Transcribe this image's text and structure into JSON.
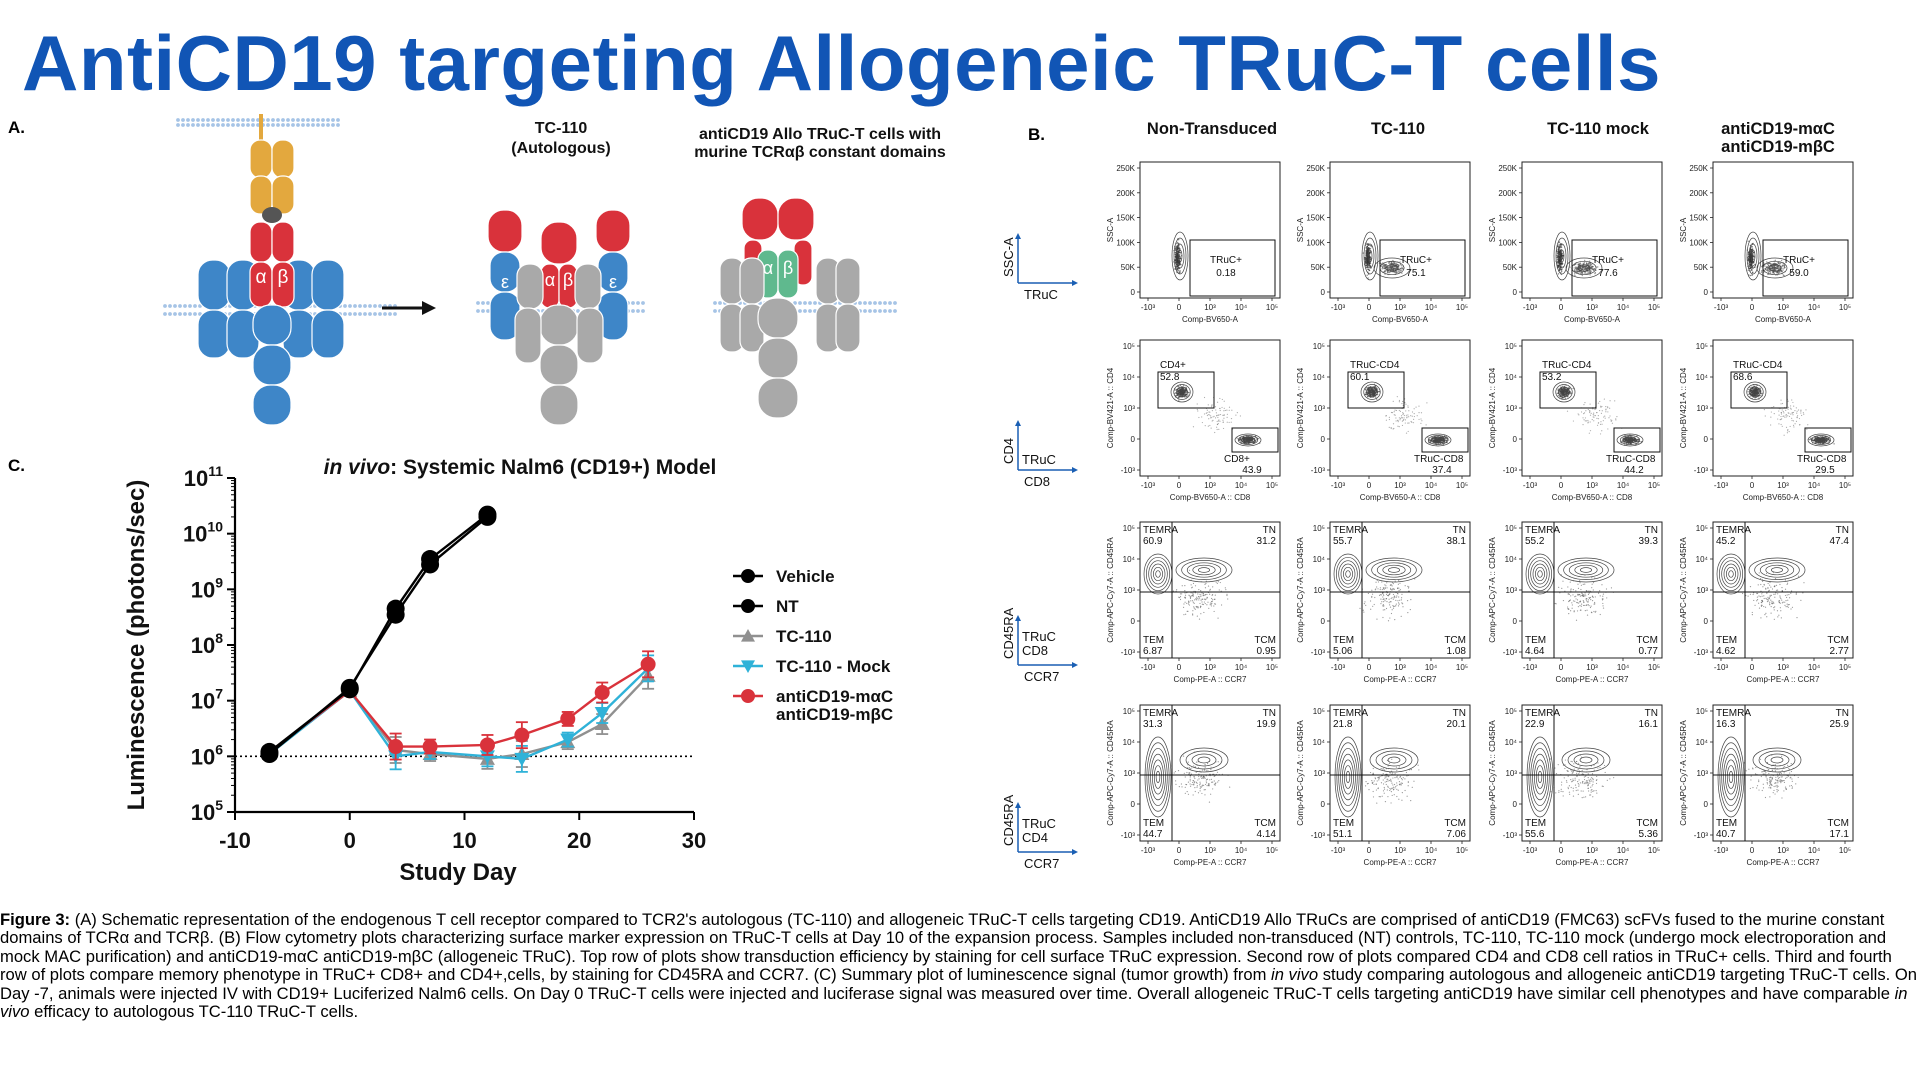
{
  "title": "AntiCD19 targeting Allogeneic TRuC-T cells",
  "panel_a": {
    "letter": "A.",
    "col2_title": [
      "TC-110",
      "(Autologous)"
    ],
    "col3_title": [
      "antiCD19 Allo TRuC-T cells with",
      "murine TCRαβ constant domains"
    ],
    "alpha": "α",
    "beta": "β",
    "epsilon": "ε",
    "colors": {
      "scfv": "#e3a83e",
      "tcr": "#d9323b",
      "cd3": "#3e86c8",
      "grey": "#a9a9a9",
      "murine": "#5fb98e"
    }
  },
  "panel_b": {
    "letter": "B.",
    "columns": [
      "Non-Transduced",
      "TC-110",
      "TC-110 mock",
      "antiCD19-mαC\nantiCD19-mβC"
    ],
    "row_axes": [
      {
        "y_axis": "SSC-A",
        "x_axis": "Comp-BV650-A",
        "legend": [
          "SSC-A",
          "TRuC"
        ]
      },
      {
        "y_axis": "Comp-BV421-A :: CD4",
        "x_axis": "Comp-BV650-A :: CD8",
        "legend": [
          "CD4",
          "TRuC",
          "CD8"
        ]
      },
      {
        "y_axis": "Comp-APC-Cy7-A :: CD45RA",
        "x_axis": "Comp-PE-A :: CCR7",
        "legend": [
          "CD45RA",
          "TRuC",
          "CD8",
          "CCR7"
        ]
      },
      {
        "y_axis": "Comp-APC-Cy7-A :: CD45RA",
        "x_axis": "Comp-PE-A :: CCR7",
        "legend": [
          "CD45RA",
          "TRuC",
          "CD4",
          "CCR7"
        ]
      }
    ],
    "row1_yticks": [
      "250K",
      "200K",
      "150K",
      "100K",
      "50K",
      "0"
    ],
    "log_xticks": [
      "-10³",
      "0",
      "10³",
      "10⁴",
      "10⁵"
    ],
    "log_yticks": [
      "10⁵",
      "10⁴",
      "10³",
      "0",
      "-10³"
    ],
    "row1": [
      {
        "gate": "TRuC+",
        "value": "0.18"
      },
      {
        "gate": "TRuC+",
        "value": "75.1"
      },
      {
        "gate": "TRuC+",
        "value": "77.6"
      },
      {
        "gate": "TRuC+",
        "value": "59.0"
      }
    ],
    "row2": [
      {
        "upper_gate": "CD4+",
        "upper": "52.8",
        "lower_gate": "CD8+",
        "lower": "43.9"
      },
      {
        "upper_gate": "TRuC-CD4",
        "upper": "60.1",
        "lower_gate": "TRuC-CD8",
        "lower": "37.4"
      },
      {
        "upper_gate": "TRuC-CD4",
        "upper": "53.2",
        "lower_gate": "TRuC-CD8",
        "lower": "44.2"
      },
      {
        "upper_gate": "TRuC-CD4",
        "upper": "68.6",
        "lower_gate": "TRuC-CD8",
        "lower": "29.5"
      }
    ],
    "quad_labels": {
      "tl": "TEMRA",
      "tr": "TN",
      "bl": "TEM",
      "br": "TCM"
    },
    "row3": [
      {
        "temra": "60.9",
        "tn": "31.2",
        "tem": "6.87",
        "tcm": "0.95"
      },
      {
        "temra": "55.7",
        "tn": "38.1",
        "tem": "5.06",
        "tcm": "1.08"
      },
      {
        "temra": "55.2",
        "tn": "39.3",
        "tem": "4.64",
        "tcm": "0.77"
      },
      {
        "temra": "45.2",
        "tn": "47.4",
        "tem": "4.62",
        "tcm": "2.77"
      }
    ],
    "row4": [
      {
        "temra": "31.3",
        "tn": "19.9",
        "tem": "44.7",
        "tcm": "4.14"
      },
      {
        "temra": "21.8",
        "tn": "20.1",
        "tem": "51.1",
        "tcm": "7.06"
      },
      {
        "temra": "22.9",
        "tn": "16.1",
        "tem": "55.6",
        "tcm": "5.36"
      },
      {
        "temra": "16.3",
        "tn": "25.9",
        "tem": "40.7",
        "tcm": "17.1"
      }
    ]
  },
  "panel_c": {
    "letter": "C.",
    "chart_data": {
      "type": "line",
      "title_italic": "in vivo",
      "title_rest": ": Systemic Nalm6 (CD19+) Model",
      "xlabel": "Study Day",
      "ylabel": "Luminescence (photons/sec)",
      "xlim": [
        -10,
        30
      ],
      "xticks": [
        -10,
        0,
        10,
        20,
        30
      ],
      "ylog": true,
      "ylim": [
        100000,
        100000000000
      ],
      "yticks_exp": [
        5,
        6,
        7,
        8,
        9,
        10,
        11
      ],
      "reference_line": 1000000,
      "series": [
        {
          "name": "Vehicle",
          "color": "#000000",
          "marker": "circle",
          "x": [
            -7,
            0,
            4,
            7,
            12
          ],
          "y": [
            1200000,
            16000000,
            450000000,
            3500000000,
            22000000000
          ]
        },
        {
          "name": "NT",
          "color": "#000000",
          "marker": "circle",
          "x": [
            -7,
            0,
            4,
            7,
            12
          ],
          "y": [
            1100000,
            17000000,
            350000000,
            2800000000,
            20000000000
          ]
        },
        {
          "name": "TC-110",
          "color": "#909090",
          "marker": "triangle-up",
          "x": [
            -7,
            0,
            4,
            7,
            12,
            15,
            19,
            22,
            26
          ],
          "y": [
            1100000,
            15000000,
            1300000,
            1100000,
            900000,
            1100000,
            1800000,
            3800000,
            28000000
          ]
        },
        {
          "name": "TC-110 - Mock",
          "color": "#2fb2d8",
          "marker": "triangle-down",
          "x": [
            -7,
            0,
            4,
            7,
            12,
            15,
            19,
            22,
            26
          ],
          "y": [
            1100000,
            15000000,
            1000000,
            1200000,
            1000000,
            900000,
            2000000,
            6000000,
            38000000
          ]
        },
        {
          "name": "antiCD19-mαC\nantiCD19-mβC",
          "color": "#d9323b",
          "marker": "circle",
          "x": [
            -7,
            0,
            4,
            7,
            12,
            15,
            19,
            22,
            26
          ],
          "y": [
            1200000,
            15000000,
            1500000,
            1500000,
            1600000,
            2400000,
            4700000,
            14000000,
            45000000
          ]
        }
      ]
    }
  },
  "caption": {
    "label": "Figure 3:",
    "text": " (A) Schematic representation of the endogenous T cell receptor compared to TCR2's autologous (TC-110) and allogeneic TRuC-T cells targeting CD19. AntiCD19 Allo TRuCs are comprised of antiCD19 (FMC63) scFVs fused to the murine constant domains of TCRα and TCRβ. (B) Flow cytometry plots characterizing surface marker expression on TRuC-T cells at Day 10 of the expansion process. Samples included non-transduced (NT) controls, TC-110, TC-110 mock (undergo mock electroporation and mock MAC purification) and antiCD19-mαC antiCD19-mβC (allogeneic TRuC). Top row of plots show transduction efficiency by staining for cell surface TRuC expression. Second row of plots compared CD4 and CD8 cell ratios in TRuC+ cells. Third and fourth row of plots compare memory phenotype in TRuC+ CD8+ and CD4+,cells, by staining for CD45RA and CCR7. (C) Summary plot of luminescence signal (tumor growth) from ",
    "italic1": "in vivo",
    "text2": " study comparing autologous and allogeneic antiCD19 targeting TRuC-T cells. On Day -7, animals were injected IV with CD19+ Luciferized Nalm6 cells. On Day 0 TRuC-T cells were injected and luciferase signal was measured over time. Overall allogeneic TRuC-T cells targeting antiCD19 have similar cell phenotypes and have comparable ",
    "italic2": "in vivo",
    "text3": " efficacy to autologous TC-110 TRuC-T cells."
  }
}
